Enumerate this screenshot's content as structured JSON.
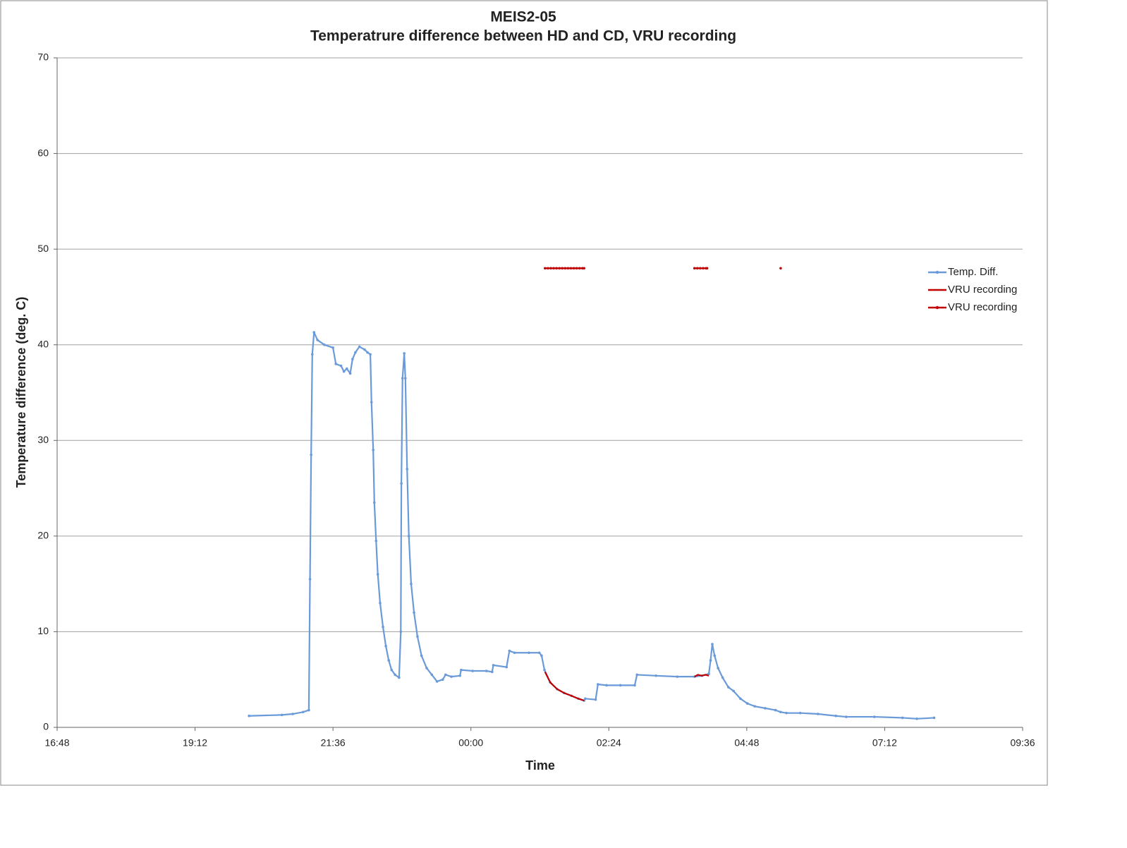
{
  "chart_data": {
    "type": "line",
    "title": "MEIS2-05",
    "subtitle": "Temperatrure difference between HD and CD, VRU recording",
    "x_label": "Time",
    "y_label": "Temperature difference (deg. C)",
    "xlim": [
      16.8,
      33.6
    ],
    "xticks": [
      {
        "value": 16.8,
        "label": "16:48"
      },
      {
        "value": 19.2,
        "label": "19:12"
      },
      {
        "value": 21.6,
        "label": "21:36"
      },
      {
        "value": 24,
        "label": "00:00"
      },
      {
        "value": 26.4,
        "label": "02:24"
      },
      {
        "value": 28.8,
        "label": "04:48"
      },
      {
        "value": 31.2,
        "label": "07:12"
      },
      {
        "value": 33.6,
        "label": "09:36"
      }
    ],
    "ylim": [
      0,
      70
    ],
    "yticks": [
      0,
      10,
      20,
      30,
      40,
      50,
      60,
      70
    ],
    "grid": true,
    "legend": "right",
    "series": [
      {
        "name": "Temp. Diff.",
        "color": "#6a9ad8",
        "markers": true,
        "x": [
          20.14,
          20.71,
          20.9,
          21.08,
          21.18,
          21.2,
          21.22,
          21.24,
          21.27,
          21.33,
          21.45,
          21.6,
          21.65,
          21.74,
          21.79,
          21.84,
          21.9,
          21.94,
          21.99,
          22.06,
          22.15,
          22.2,
          22.25,
          22.27,
          22.3,
          22.32,
          22.35,
          22.38,
          22.42,
          22.47,
          22.52,
          22.57,
          22.62,
          22.68,
          22.75,
          22.78,
          22.79,
          22.81,
          22.84,
          22.86,
          22.89,
          22.92,
          22.96,
          23.01,
          23.07,
          23.14,
          23.23,
          23.32,
          23.41,
          23.51,
          23.56,
          23.66,
          23.81,
          23.83,
          24.03,
          24.27,
          24.37,
          24.39,
          24.62,
          24.67,
          24.76,
          25.01,
          25.19,
          25.23,
          25.28,
          25.38,
          25.5,
          25.62,
          25.75,
          25.87,
          25.97,
          25.99,
          26.17,
          26.21,
          26.36,
          26.6,
          26.85,
          26.89,
          27.22,
          27.59,
          27.89,
          28.02,
          28.14,
          28.17,
          28.2,
          28.24,
          28.3,
          28.38,
          28.48,
          28.57,
          28.69,
          28.81,
          28.94,
          29.12,
          29.3,
          29.39,
          29.49,
          29.73,
          30.04,
          30.35,
          30.53,
          31.02,
          31.51,
          31.76,
          32.06
        ],
        "values": [
          1.2,
          1.3,
          1.4,
          1.6,
          1.8,
          15.5,
          28.5,
          39,
          41.3,
          40.5,
          40,
          39.7,
          38,
          37.8,
          37.2,
          37.5,
          37,
          38.5,
          39.2,
          39.8,
          39.5,
          39.2,
          39,
          34,
          29,
          23.5,
          19.5,
          16,
          13,
          10.5,
          8.5,
          7,
          6,
          5.5,
          5.2,
          10,
          25.5,
          36.5,
          39.1,
          36.5,
          27,
          20,
          15,
          12,
          9.5,
          7.5,
          6.2,
          5.5,
          4.8,
          5,
          5.5,
          5.3,
          5.4,
          6,
          5.9,
          5.9,
          5.8,
          6.5,
          6.3,
          8,
          7.8,
          7.8,
          7.8,
          7.5,
          6,
          4.7,
          4,
          3.6,
          3.3,
          3,
          2.8,
          3,
          2.9,
          4.5,
          4.4,
          4.4,
          4.4,
          5.5,
          5.4,
          5.3,
          5.3,
          5.4,
          5.6,
          7,
          8.7,
          7.5,
          6.2,
          5.2,
          4.2,
          3.8,
          3,
          2.5,
          2.2,
          2,
          1.8,
          1.6,
          1.5,
          1.5,
          1.4,
          1.2,
          1.1,
          1.1,
          1,
          0.9,
          1
        ]
      },
      {
        "name": "VRU recording",
        "color": "#c00000",
        "markers": false,
        "x": [
          25.29,
          25.38,
          25.5,
          25.62,
          25.75,
          25.87,
          25.97,
          26.9,
          27.89,
          27.95,
          28.02,
          28.08,
          28.14,
          28.7,
          29.39
        ],
        "values": [
          5.8,
          4.7,
          4.0,
          3.6,
          3.3,
          3.0,
          2.8,
          null,
          5.3,
          5.5,
          5.4,
          5.5,
          5.4,
          null,
          1.5
        ]
      },
      {
        "name": "VRU recording",
        "color": "#c00000",
        "markers": true,
        "x": [
          25.29,
          25.34,
          25.39,
          25.44,
          25.49,
          25.54,
          25.59,
          25.64,
          25.69,
          25.74,
          25.79,
          25.84,
          25.89,
          25.94,
          25.97,
          26.5,
          27.89,
          27.94,
          27.99,
          28.04,
          28.09,
          28.11,
          28.7,
          29.39
        ],
        "values": [
          48,
          48,
          48,
          48,
          48,
          48,
          48,
          48,
          48,
          48,
          48,
          48,
          48,
          48,
          48,
          null,
          48,
          48,
          48,
          48,
          48,
          48,
          null,
          48
        ]
      }
    ]
  }
}
